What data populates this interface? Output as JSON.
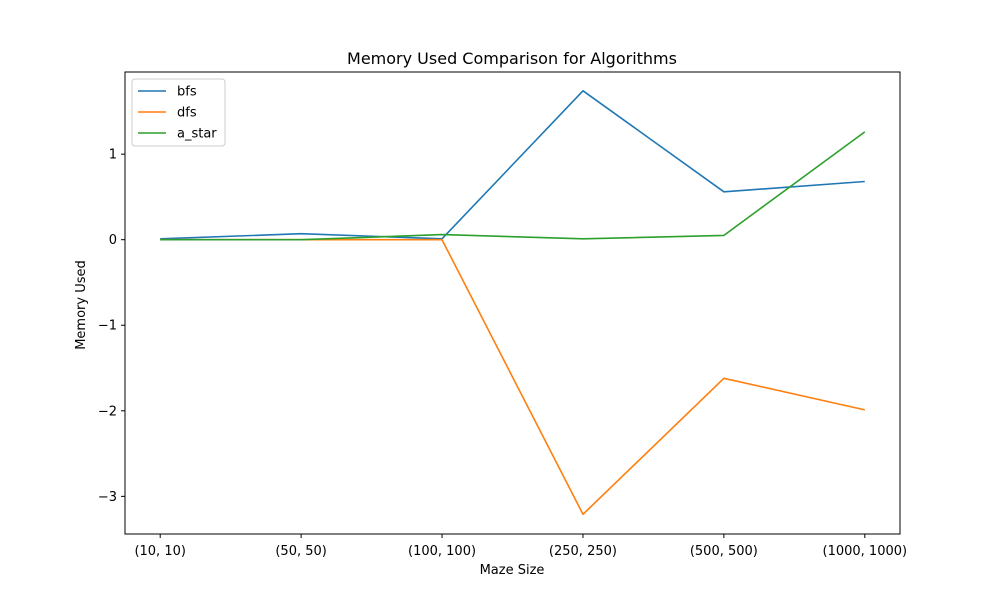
{
  "chart_data": {
    "type": "line",
    "title": "Memory Used Comparison for Algorithms",
    "xlabel": "Maze Size",
    "ylabel": "Memory Used",
    "categories": [
      "(10, 10)",
      "(50, 50)",
      "(100, 100)",
      "(250, 250)",
      "(500, 500)",
      "(1000, 1000)"
    ],
    "ylim": [
      -3.44,
      1.96
    ],
    "yticks": [
      1,
      0,
      -1,
      -2,
      -3
    ],
    "ytick_labels": [
      "1",
      "0",
      "−1",
      "−2",
      "−3"
    ],
    "grid": false,
    "legend_position": "top-left",
    "series": [
      {
        "name": "bfs",
        "color": "#1f77b4",
        "values": [
          0.01,
          0.07,
          0.01,
          1.74,
          0.56,
          0.68
        ]
      },
      {
        "name": "dfs",
        "color": "#ff7f0e",
        "values": [
          0.0,
          0.0,
          0.0,
          -3.21,
          -1.62,
          -1.99
        ]
      },
      {
        "name": "a_star",
        "color": "#2ca02c",
        "values": [
          0.0,
          0.0,
          0.06,
          0.01,
          0.05,
          1.26
        ]
      }
    ]
  }
}
